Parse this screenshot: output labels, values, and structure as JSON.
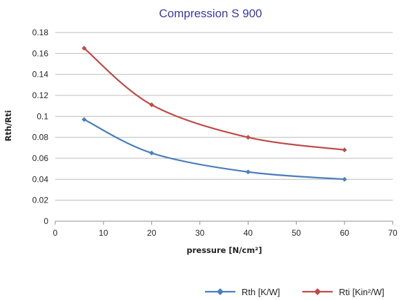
{
  "chart_data": {
    "type": "line",
    "title": "Compression S 900",
    "xlabel": "pressure [N/cm²]",
    "ylabel": "Rth/Rti",
    "xlim": [
      0,
      70
    ],
    "ylim": [
      0,
      0.18
    ],
    "xticks": [
      "0",
      "10",
      "20",
      "30",
      "40",
      "50",
      "60",
      "70"
    ],
    "yticks": [
      "0",
      "0.02",
      "0.04",
      "0.06",
      "0.08",
      "0.1",
      "0.12",
      "0.14",
      "0.16",
      "0.18"
    ],
    "grid": "horizontal",
    "legend_position": "bottom-right",
    "series": [
      {
        "name": "Rth [K/W]",
        "color": "#4a7ebb",
        "marker": "diamond",
        "x": [
          6,
          20,
          40,
          60
        ],
        "y": [
          0.097,
          0.065,
          0.047,
          0.04
        ]
      },
      {
        "name": "Rti [Kin²/W]",
        "color": "#be4b48",
        "marker": "diamond",
        "x": [
          6,
          20,
          40,
          60
        ],
        "y": [
          0.165,
          0.111,
          0.08,
          0.068
        ]
      }
    ]
  }
}
